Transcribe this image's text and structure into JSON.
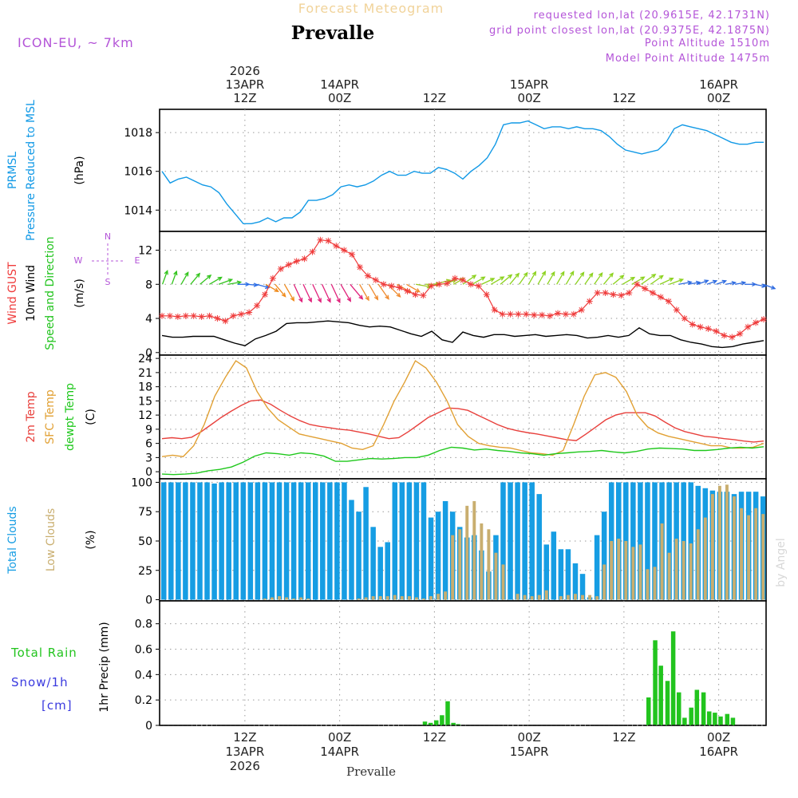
{
  "header": {
    "subtitle": "Forecast Meteogram",
    "station": "Prevalle",
    "model": "ICON-EU, ~ 7km",
    "requested": "requested lon,lat (20.9615E, 42.1731N)",
    "gridpoint": "grid point closest lon,lat (20.9375E, 42.1875N)",
    "altitude": "Point Altitude 1510m",
    "model_altitude": "Model Point Altitude 1475m",
    "watermark": "by Angel",
    "footer_station": "Prevalle"
  },
  "colors": {
    "pressure": "#1199e6",
    "gust": "#ef3b3b",
    "wind": "#000000",
    "direction": "#22c41e",
    "temp": "#e8403c",
    "sfc": "#e1a033",
    "dewpt": "#1fc81c",
    "total_clouds": "#169de3",
    "low_clouds": "#c9ae6f",
    "rain": "#22c41e",
    "snow": "#3a3adf",
    "accent": "#b455d8",
    "subtitle": "#f1d39a"
  },
  "time_axis": {
    "start_hour_offset": 0,
    "total_hours": 64,
    "top_labels": [
      {
        "hour": 9,
        "lines": [
          "2026",
          "13APR",
          "12Z"
        ]
      },
      {
        "hour": 19,
        "lines": [
          "14APR",
          "00Z"
        ]
      },
      {
        "hour": 29,
        "lines": [
          "12Z"
        ]
      },
      {
        "hour": 39,
        "lines": [
          "15APR",
          "00Z"
        ]
      },
      {
        "hour": 49,
        "lines": [
          "12Z"
        ]
      },
      {
        "hour": 59,
        "lines": [
          "16APR",
          "00Z"
        ]
      }
    ],
    "bottom_labels": [
      {
        "hour": 9,
        "lines": [
          "12Z",
          "13APR",
          "2026"
        ]
      },
      {
        "hour": 19,
        "lines": [
          "00Z",
          "14APR"
        ]
      },
      {
        "hour": 29,
        "lines": [
          "12Z"
        ]
      },
      {
        "hour": 39,
        "lines": [
          "00Z",
          "15APR"
        ]
      },
      {
        "hour": 49,
        "lines": [
          "12Z"
        ]
      },
      {
        "hour": 59,
        "lines": [
          "00Z",
          "16APR"
        ]
      }
    ]
  },
  "chart_data": [
    {
      "type": "line",
      "title": "PRMSL Pressure Reduced to MSL",
      "label_lines": [
        {
          "text": "PRMSL",
          "color": "#1199e6"
        },
        {
          "text": "Pressure Reduced to MSL",
          "color": "#1199e6"
        }
      ],
      "unit": "(hPa)",
      "ylim": [
        1012.9,
        1019.2
      ],
      "yticks": [
        1014,
        1016,
        1018
      ],
      "series": [
        {
          "name": "PRMSL",
          "color": "#1199e6",
          "values": [
            1016.0,
            1015.4,
            1015.6,
            1015.7,
            1015.5,
            1015.3,
            1015.2,
            1014.9,
            1014.3,
            1013.8,
            1013.3,
            1013.3,
            1013.4,
            1013.6,
            1013.4,
            1013.6,
            1013.6,
            1013.9,
            1014.5,
            1014.5,
            1014.6,
            1014.8,
            1015.2,
            1015.3,
            1015.2,
            1015.3,
            1015.5,
            1015.8,
            1016.0,
            1015.8,
            1015.8,
            1016.0,
            1015.9,
            1015.9,
            1016.2,
            1016.1,
            1015.9,
            1015.6,
            1016.0,
            1016.3,
            1016.7,
            1017.4,
            1018.4,
            1018.5,
            1018.5,
            1018.6,
            1018.4,
            1018.2,
            1018.3,
            1018.3,
            1018.2,
            1018.3,
            1018.2,
            1018.2,
            1018.1,
            1017.8,
            1017.4,
            1017.1,
            1017.0,
            1016.9,
            1017.0,
            1017.1,
            1017.5,
            1018.2,
            1018.4,
            1018.3,
            1018.2,
            1018.1,
            1017.9,
            1017.7,
            1017.5,
            1017.4,
            1017.4,
            1017.5,
            1017.5
          ]
        }
      ]
    },
    {
      "type": "line",
      "title": "Wind GUST 10m Wind Speed and Direction",
      "label_lines": [
        {
          "text": "Wind GUST",
          "color": "#ef3b3b"
        },
        {
          "text": "10m Wind",
          "color": "#000000"
        },
        {
          "text": "Speed and Direction",
          "color": "#22c41e"
        }
      ],
      "unit": "(m/s)",
      "ylim": [
        -0.3,
        14.2
      ],
      "yticks": [
        0,
        4,
        8,
        12
      ],
      "compass": {
        "north": "N",
        "south": "S",
        "west": "W",
        "east": "E"
      },
      "series": [
        {
          "name": "Wind GUST",
          "color": "#ef3b3b",
          "marker": "star",
          "values": [
            4.3,
            4.3,
            4.2,
            4.3,
            4.3,
            4.2,
            4.3,
            4.0,
            3.7,
            4.3,
            4.5,
            4.7,
            5.5,
            6.8,
            8.7,
            9.8,
            10.3,
            10.7,
            11.0,
            11.8,
            13.2,
            13.1,
            12.5,
            12.0,
            11.5,
            10.0,
            9.0,
            8.5,
            8.0,
            7.8,
            7.6,
            7.2,
            6.8,
            6.7,
            7.8,
            8.0,
            8.1,
            8.7,
            8.5,
            8.0,
            7.8,
            6.8,
            5.0,
            4.5,
            4.5,
            4.5,
            4.5,
            4.4,
            4.4,
            4.3,
            4.6,
            4.5,
            4.5,
            5.0,
            6.0,
            7.0,
            7.0,
            6.8,
            6.7,
            7.0,
            8.0,
            7.5,
            7.0,
            6.5,
            6.0,
            5.0,
            4.0,
            3.3,
            3.0,
            2.8,
            2.5,
            2.0,
            1.8,
            2.2,
            3.0,
            3.5,
            3.9
          ]
        },
        {
          "name": "10m Wind",
          "color": "#000000",
          "values": [
            2.0,
            1.8,
            1.8,
            1.9,
            1.9,
            1.9,
            1.5,
            1.1,
            0.8,
            1.6,
            2.0,
            2.5,
            3.4,
            3.5,
            3.5,
            3.6,
            3.7,
            3.6,
            3.5,
            3.2,
            3.0,
            3.1,
            3.0,
            2.6,
            2.2,
            1.9,
            2.5,
            1.5,
            1.2,
            2.4,
            2.0,
            1.8,
            2.1,
            2.1,
            1.9,
            2.0,
            2.1,
            1.9,
            2.0,
            2.1,
            2.0,
            1.7,
            1.8,
            2.0,
            1.8,
            2.0,
            2.9,
            2.2,
            2.0,
            2.0,
            1.5,
            1.2,
            1.0,
            0.7,
            0.6,
            0.7,
            1.0,
            1.2,
            1.4
          ]
        },
        {
          "name": "Direction",
          "color": "#22c41e",
          "directions_deg": [
            200,
            200,
            210,
            220,
            230,
            240,
            250,
            260,
            270,
            275,
            285,
            300,
            320,
            330,
            335,
            335,
            335,
            335,
            335,
            330,
            320,
            330,
            330,
            325,
            315,
            300,
            300,
            280,
            270,
            255,
            250,
            240,
            235,
            240,
            245,
            240,
            230,
            220,
            215,
            210,
            210,
            210,
            210,
            210,
            215,
            215,
            215,
            220,
            230,
            240,
            240,
            235,
            235,
            245,
            250,
            260,
            260,
            250,
            250,
            250,
            260,
            260,
            270,
            280,
            290
          ]
        }
      ]
    },
    {
      "type": "line",
      "title": "2m Temp SFC Temp dewpt Temp",
      "label_lines": [
        {
          "text": "2m Temp",
          "color": "#e8403c"
        },
        {
          "text": "SFC Temp",
          "color": "#e1a033"
        },
        {
          "text": "dewpt Temp",
          "color": "#1fc81c"
        }
      ],
      "unit": "(C)",
      "ylim": [
        -1.5,
        24.7
      ],
      "yticks": [
        0,
        3,
        6,
        9,
        12,
        15,
        18,
        21,
        24
      ],
      "series": [
        {
          "name": "2m Temp",
          "color": "#e8403c",
          "values": [
            7.0,
            7.2,
            7.0,
            7.3,
            8.5,
            10.0,
            11.5,
            12.8,
            14.0,
            15.0,
            15.2,
            14.3,
            13.0,
            11.8,
            10.8,
            10.0,
            9.6,
            9.3,
            9.0,
            8.8,
            8.4,
            8.0,
            7.5,
            7.0,
            7.2,
            8.5,
            10.0,
            11.5,
            12.5,
            13.5,
            13.4,
            13.0,
            12.0,
            11.0,
            10.0,
            9.2,
            8.7,
            8.3,
            8.0,
            7.6,
            7.2,
            6.8,
            6.6,
            8.0,
            9.5,
            11.0,
            12.0,
            12.5,
            12.5,
            12.5,
            11.8,
            10.5,
            9.3,
            8.5,
            8.0,
            7.5,
            7.3,
            7.0,
            6.8,
            6.5,
            6.3,
            6.5
          ]
        },
        {
          "name": "SFC Temp",
          "color": "#e1a033",
          "values": [
            3.2,
            3.5,
            3.2,
            5.5,
            10.0,
            16.0,
            20.0,
            23.5,
            22.0,
            17.0,
            13.5,
            11.0,
            9.5,
            8.0,
            7.5,
            7.0,
            6.5,
            6.0,
            5.0,
            4.7,
            5.5,
            10.0,
            15.0,
            19.0,
            23.5,
            22.0,
            19.0,
            15.0,
            10.0,
            7.5,
            6.0,
            5.5,
            5.2,
            5.0,
            4.5,
            4.0,
            3.8,
            3.5,
            4.5,
            10.0,
            16.0,
            20.5,
            21.0,
            20.0,
            17.0,
            12.0,
            9.5,
            8.2,
            7.5,
            7.0,
            6.5,
            6.0,
            5.5,
            5.5,
            5.0,
            5.0,
            5.2,
            6.0
          ]
        },
        {
          "name": "dewpt Temp",
          "color": "#1fc81c",
          "values": [
            -0.5,
            -0.6,
            -0.5,
            -0.3,
            0.2,
            0.5,
            1.0,
            2.0,
            3.3,
            4.0,
            3.8,
            3.5,
            4.0,
            3.8,
            3.3,
            2.2,
            2.2,
            2.5,
            2.8,
            2.7,
            2.8,
            3.0,
            3.0,
            3.5,
            4.5,
            5.2,
            5.0,
            4.6,
            4.8,
            4.5,
            4.3,
            4.0,
            3.8,
            3.5,
            3.8,
            4.0,
            4.2,
            4.3,
            4.5,
            4.2,
            4.0,
            4.3,
            4.8,
            5.0,
            4.9,
            4.8,
            4.5,
            4.5,
            4.7,
            5.0,
            5.2,
            5.0,
            5.3
          ]
        }
      ]
    },
    {
      "type": "bar",
      "title": "Total Clouds Low Clouds",
      "label_lines": [
        {
          "text": "Total Clouds",
          "color": "#169de3"
        },
        {
          "text": "Low Clouds",
          "color": "#c9ae6f"
        }
      ],
      "unit": "(%)",
      "ylim": [
        -1,
        103
      ],
      "yticks": [
        0,
        25,
        50,
        75,
        100
      ],
      "series": [
        {
          "name": "Total Clouds",
          "color": "#169de3",
          "values": [
            100,
            100,
            100,
            100,
            100,
            100,
            100,
            99,
            100,
            100,
            100,
            100,
            100,
            100,
            100,
            100,
            100,
            100,
            100,
            100,
            100,
            100,
            100,
            100,
            100,
            100,
            85,
            75,
            96,
            62,
            45,
            49,
            100,
            100,
            100,
            100,
            100,
            70,
            75,
            84,
            75,
            62,
            53,
            55,
            42,
            24,
            55,
            100,
            100,
            100,
            100,
            100,
            90,
            47,
            58,
            43,
            43,
            31,
            22,
            2,
            55,
            75,
            100,
            100,
            100,
            100,
            100,
            100,
            100,
            100,
            100,
            100,
            100,
            100,
            97,
            95,
            93,
            92,
            92,
            90,
            92,
            92,
            92,
            88
          ]
        },
        {
          "name": "Low Clouds",
          "color": "#c9ae6f",
          "values": [
            0,
            0,
            0,
            0,
            0,
            0,
            0,
            0,
            0,
            0,
            0,
            0,
            0,
            0,
            1,
            2,
            3,
            2,
            1,
            2,
            1,
            0,
            0,
            0,
            0,
            0,
            0,
            1,
            2,
            3,
            3,
            3,
            4,
            3,
            3,
            2,
            1,
            3,
            5,
            7,
            55,
            60,
            80,
            84,
            65,
            60,
            40,
            30,
            0,
            5,
            4,
            3,
            4,
            8,
            0,
            3,
            4,
            5,
            4,
            4,
            3,
            30,
            50,
            52,
            50,
            45,
            47,
            26,
            28,
            65,
            40,
            52,
            50,
            48,
            60,
            70,
            90,
            97,
            98,
            88,
            78,
            72,
            78,
            73,
            74,
            65
          ]
        }
      ]
    },
    {
      "type": "bar",
      "title": "1hr Precip (mm)",
      "label_lines": [
        {
          "text": "Total  Rain",
          "color": "#22c41e"
        },
        {
          "text": "Snow/1h",
          "color": "#3a3adf"
        },
        {
          "text": "[cm]",
          "color": "#3a3adf"
        }
      ],
      "unit": "1hr Precip (mm)",
      "ylim": [
        0,
        0.98
      ],
      "yticks": [
        0,
        0.2,
        0.4,
        0.6,
        0.8
      ],
      "series": [
        {
          "name": "Total Rain",
          "color": "#22c41e",
          "hours": [
            28.0,
            28.6,
            29.2,
            29.8,
            30.4,
            31.0,
            31.5,
            51.6,
            52.3,
            52.9,
            53.6,
            54.2,
            54.8,
            55.4,
            56.1,
            56.7,
            57.4,
            58.0,
            58.6,
            59.2,
            59.9,
            60.5,
            61.2,
            61.8,
            62.4,
            63.0
          ],
          "values": [
            0.03,
            0.02,
            0.04,
            0.08,
            0.19,
            0.02,
            0.01,
            0.22,
            0.67,
            0.47,
            0.35,
            0.74,
            0.26,
            0.06,
            0.14,
            0.28,
            0.26,
            0.11,
            0.1,
            0.07,
            0.09,
            0.06,
            0,
            0,
            0,
            0
          ]
        }
      ]
    }
  ]
}
